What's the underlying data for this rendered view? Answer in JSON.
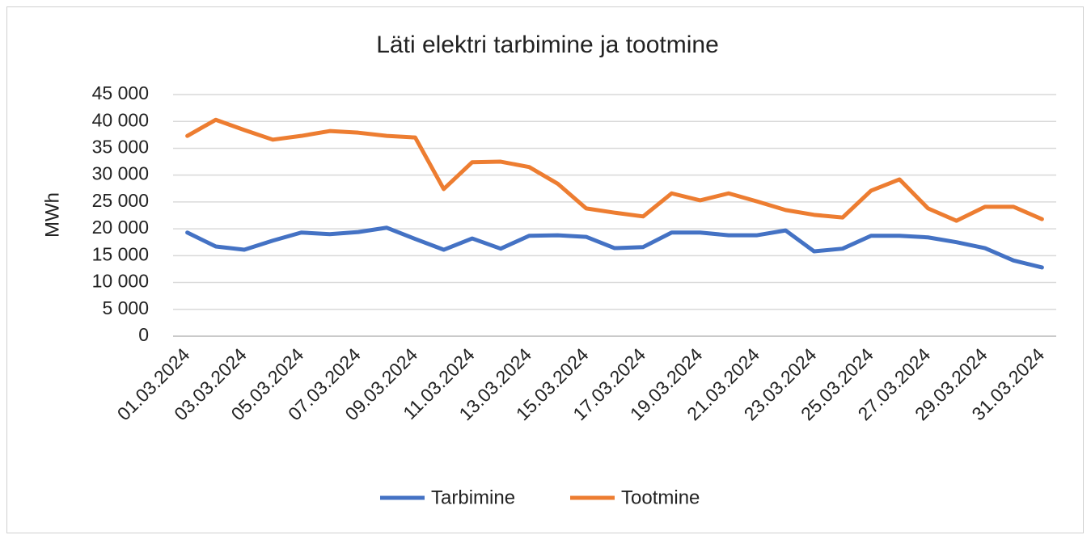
{
  "chart_data": {
    "type": "line",
    "title": "Läti elektri tarbimine ja tootmine",
    "y_label": "MWh",
    "categories": [
      "01.03.2024",
      null,
      "03.03.2024",
      null,
      "05.03.2024",
      null,
      "07.03.2024",
      null,
      "09.03.2024",
      null,
      "11.03.2024",
      null,
      "13.03.2024",
      null,
      "15.03.2024",
      null,
      "17.03.2024",
      null,
      "19.03.2024",
      null,
      "21.03.2024",
      null,
      "23.03.2024",
      null,
      "25.03.2024",
      null,
      "27.03.2024",
      null,
      "29.03.2024",
      null,
      "31.03.2024"
    ],
    "series": [
      {
        "name": "Tarbimine",
        "color": "#4472c4",
        "values": [
          19300,
          16700,
          16100,
          17800,
          19300,
          19000,
          19400,
          20200,
          18100,
          16100,
          18200,
          16300,
          18700,
          18800,
          18500,
          16400,
          16600,
          19300,
          19300,
          18800,
          18800,
          19700,
          15800,
          16300,
          18700,
          18700,
          18400,
          17500,
          16400,
          14100,
          12800
        ]
      },
      {
        "name": "Tootmine",
        "color": "#ed7d31",
        "values": [
          37300,
          40300,
          38400,
          36600,
          37300,
          38200,
          37900,
          37300,
          37000,
          27400,
          32400,
          32500,
          31500,
          28400,
          23800,
          23000,
          22300,
          26600,
          25300,
          26600,
          25100,
          23500,
          22600,
          22100,
          27100,
          29200,
          23800,
          21500,
          24100,
          24100,
          21800
        ]
      }
    ],
    "ylim": [
      0,
      45000
    ],
    "yticks": [
      0,
      {
        "value": 5000,
        "label": "5 000"
      },
      {
        "value": 10000,
        "label": "10 000"
      },
      {
        "value": 15000,
        "label": "15 000"
      },
      {
        "value": 20000,
        "label": "20 000"
      },
      {
        "value": 25000,
        "label": "25 000"
      },
      {
        "value": 30000,
        "label": "30 000"
      },
      {
        "value": 35000,
        "label": "35 000"
      },
      {
        "value": 40000,
        "label": "40 000"
      },
      {
        "value": 45000,
        "label": "45 000"
      }
    ],
    "grid": true,
    "legend": "bottom"
  }
}
